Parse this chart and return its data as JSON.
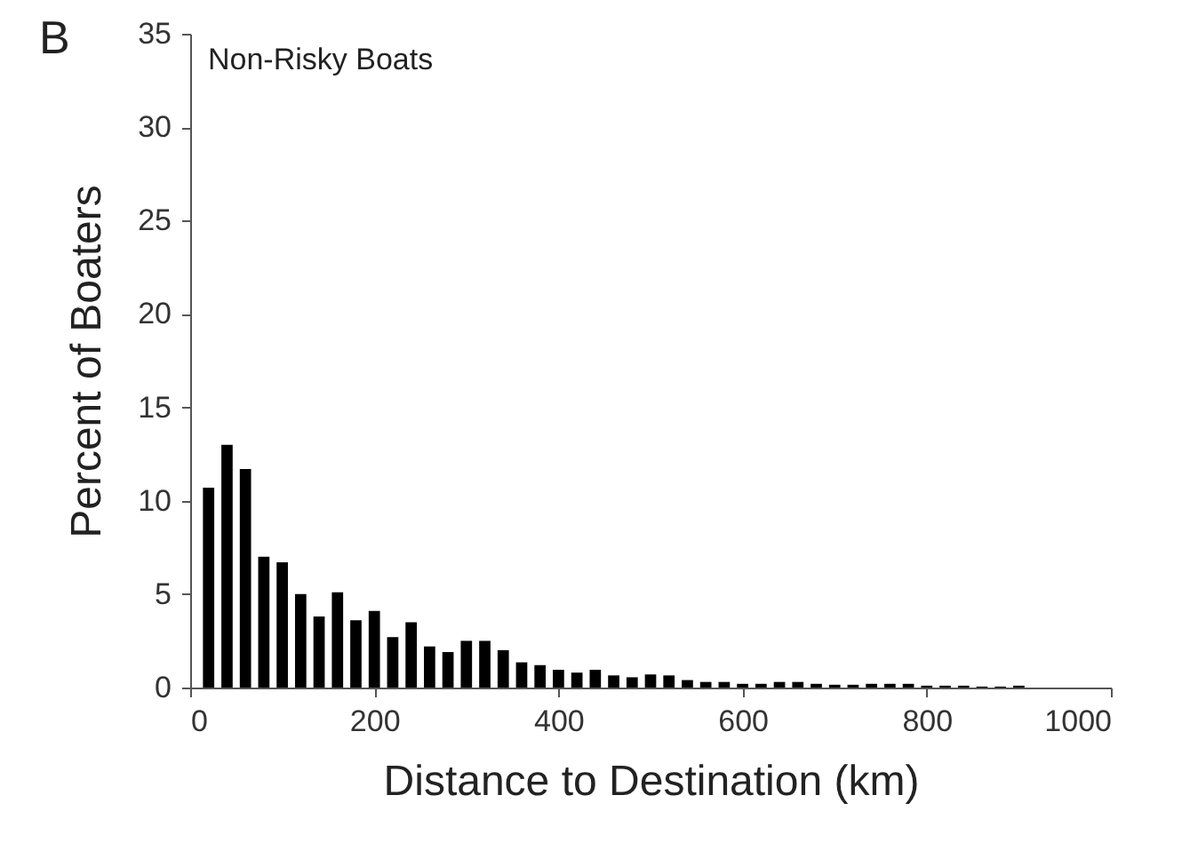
{
  "chart_data": {
    "type": "histogram",
    "bins": [
      10,
      30,
      50,
      70,
      90,
      110,
      130,
      150,
      170,
      190,
      210,
      230,
      250,
      270,
      290,
      310,
      330,
      350,
      370,
      390,
      410,
      430,
      450,
      470,
      490,
      510,
      530,
      550,
      570,
      590,
      610,
      630,
      650,
      670,
      690,
      710,
      730,
      750,
      770,
      790,
      810,
      830,
      850,
      870,
      890,
      910
    ],
    "values": [
      10.7,
      13.0,
      11.7,
      7.0,
      6.7,
      5.0,
      3.8,
      5.1,
      3.6,
      4.1,
      2.7,
      3.5,
      2.2,
      1.9,
      2.5,
      2.5,
      2.0,
      1.35,
      1.2,
      0.95,
      0.8,
      0.95,
      0.65,
      0.55,
      0.7,
      0.65,
      0.4,
      0.3,
      0.3,
      0.2,
      0.2,
      0.3,
      0.3,
      0.2,
      0.15,
      0.15,
      0.2,
      0.2,
      0.2,
      0.1,
      0.1,
      0.1,
      0.05,
      0.05,
      0.1
    ],
    "color": "#000000",
    "xlabel": "Distance to Destination (km)",
    "ylabel": "Percent of Boaters",
    "annotations": [
      "B",
      "Non-Risky Boats"
    ],
    "xlim": [
      0,
      1000
    ],
    "xticks": [
      0,
      200,
      400,
      600,
      800,
      1000
    ],
    "ylim": [
      0,
      35
    ],
    "yticks": [
      0,
      5,
      10,
      15,
      20,
      25,
      30,
      35
    ],
    "grid": false
  }
}
